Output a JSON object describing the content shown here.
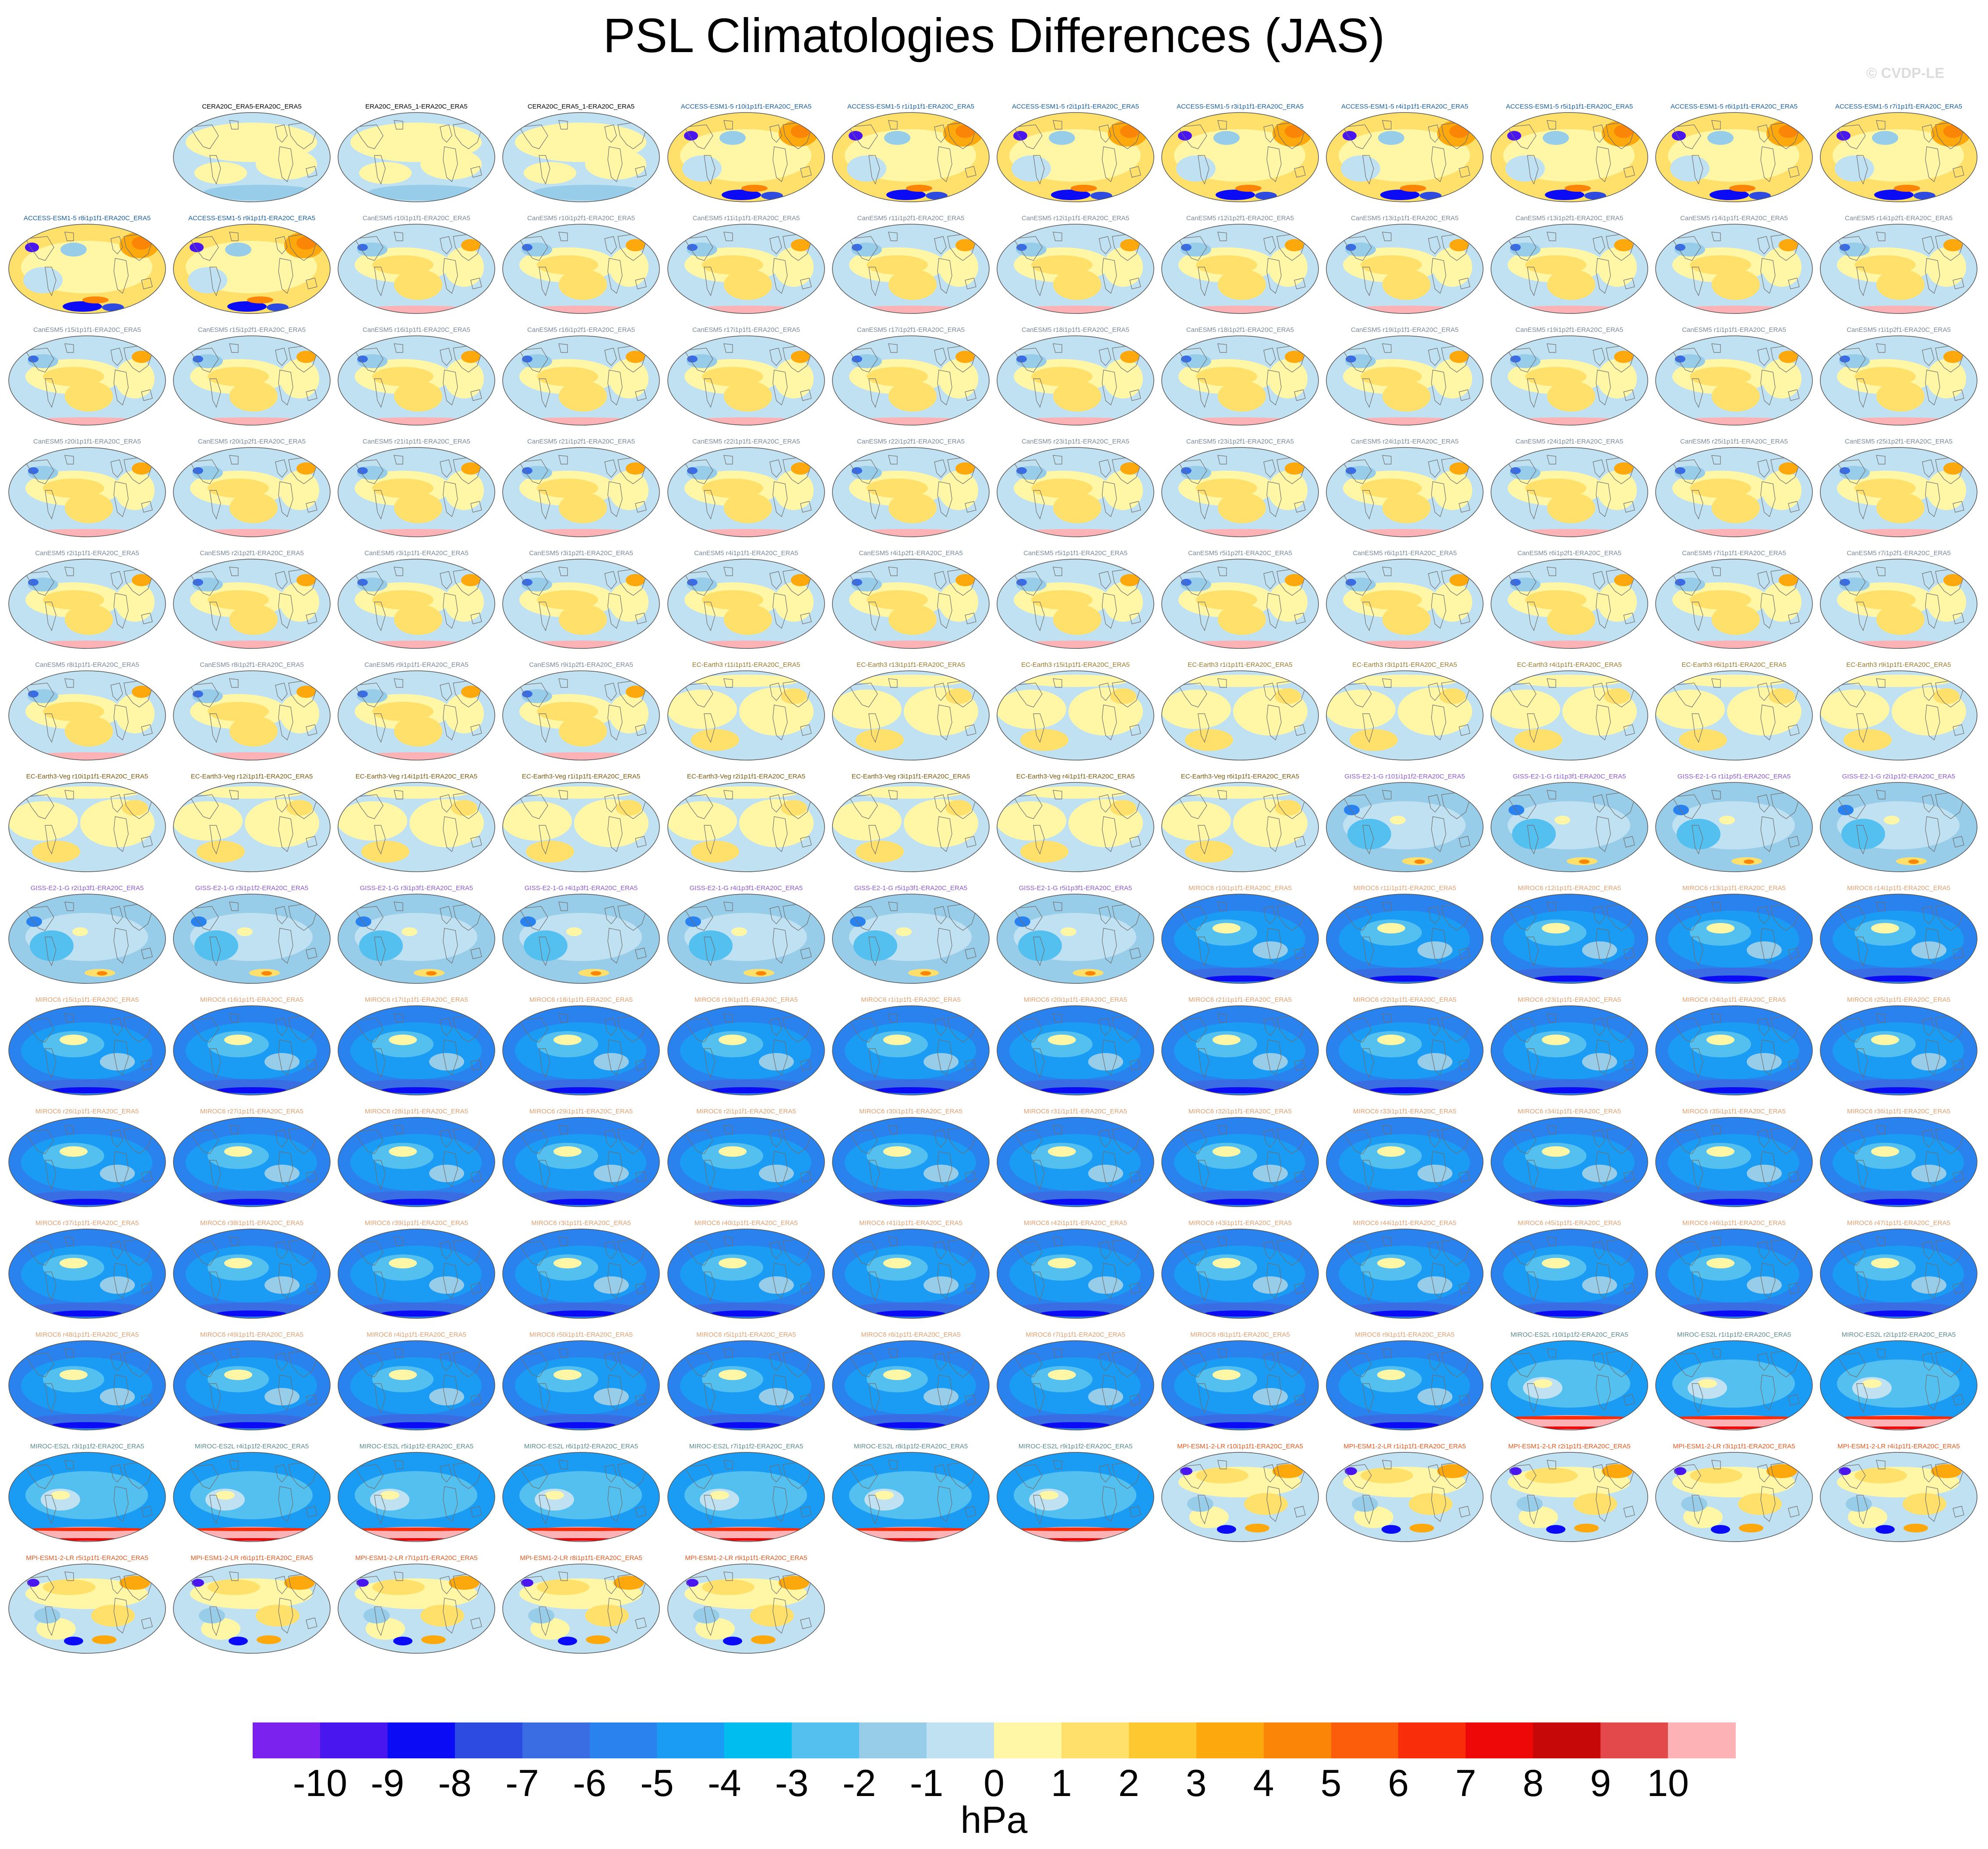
{
  "title": "PSL Climatologies Differences (JAS)",
  "watermark": "© CVDP-LE",
  "colorbar": {
    "units": "hPa",
    "tick_labels": [
      "-10",
      "-9",
      "-8",
      "-7",
      "-6",
      "-5",
      "-4",
      "-3",
      "-2",
      "-1",
      "0",
      "1",
      "2",
      "3",
      "4",
      "5",
      "6",
      "7",
      "8",
      "9",
      "10"
    ],
    "colors": [
      "#7b22ef",
      "#4a16ef",
      "#0b0cf5",
      "#2d4be0",
      "#3a6de3",
      "#2a82ee",
      "#1a9cf5",
      "#00bdf0",
      "#54c0ef",
      "#98cdea",
      "#bfe1f2",
      "#fff7a6",
      "#fee06a",
      "#fec830",
      "#fda80c",
      "#fb8507",
      "#fb5d0b",
      "#f92d0a",
      "#ee0808",
      "#c60808",
      "#e3484a",
      "#fdb3b6"
    ]
  },
  "panels": [
    {
      "title": "CERA20C_ERA5-ERA20C_ERA5",
      "scheme": "ref",
      "title_color": "#000000"
    },
    {
      "title": "ERA20C_ERA5_1-ERA20C_ERA5",
      "scheme": "ref",
      "title_color": "#000000"
    },
    {
      "title": "CERA20C_ERA5_1-ERA20C_ERA5",
      "scheme": "ref",
      "title_color": "#000000"
    },
    {
      "title": "ACCESS-ESM1-5 r10i1p1f1-ERA20C_ERA5",
      "scheme": "access",
      "title_color": "#1a5fa0"
    },
    {
      "title": "ACCESS-ESM1-5 r1i1p1f1-ERA20C_ERA5",
      "scheme": "access",
      "title_color": "#1a5fa0"
    },
    {
      "title": "ACCESS-ESM1-5 r2i1p1f1-ERA20C_ERA5",
      "scheme": "access",
      "title_color": "#1a5fa0"
    },
    {
      "title": "ACCESS-ESM1-5 r3i1p1f1-ERA20C_ERA5",
      "scheme": "access",
      "title_color": "#1a5fa0"
    },
    {
      "title": "ACCESS-ESM1-5 r4i1p1f1-ERA20C_ERA5",
      "scheme": "access",
      "title_color": "#1a5fa0"
    },
    {
      "title": "ACCESS-ESM1-5 r5i1p1f1-ERA20C_ERA5",
      "scheme": "access",
      "title_color": "#1a5fa0"
    },
    {
      "title": "ACCESS-ESM1-5 r6i1p1f1-ERA20C_ERA5",
      "scheme": "access",
      "title_color": "#1a5fa0"
    },
    {
      "title": "ACCESS-ESM1-5 r7i1p1f1-ERA20C_ERA5",
      "scheme": "access",
      "title_color": "#1a5fa0"
    },
    {
      "title": "ACCESS-ESM1-5 r8i1p1f1-ERA20C_ERA5",
      "scheme": "access",
      "title_color": "#1a5fa0"
    },
    {
      "title": "ACCESS-ESM1-5 r9i1p1f1-ERA20C_ERA5",
      "scheme": "access",
      "title_color": "#1a5fa0"
    },
    {
      "title": "CanESM5 r10i1p1f1-ERA20C_ERA5",
      "scheme": "canesm",
      "title_color": "#7a8a9a"
    },
    {
      "title": "CanESM5 r10i1p2f1-ERA20C_ERA5",
      "scheme": "canesm",
      "title_color": "#7a8a9a"
    },
    {
      "title": "CanESM5 r11i1p1f1-ERA20C_ERA5",
      "scheme": "canesm",
      "title_color": "#7a8a9a"
    },
    {
      "title": "CanESM5 r11i1p2f1-ERA20C_ERA5",
      "scheme": "canesm",
      "title_color": "#7a8a9a"
    },
    {
      "title": "CanESM5 r12i1p1f1-ERA20C_ERA5",
      "scheme": "canesm",
      "title_color": "#7a8a9a"
    },
    {
      "title": "CanESM5 r12i1p2f1-ERA20C_ERA5",
      "scheme": "canesm",
      "title_color": "#7a8a9a"
    },
    {
      "title": "CanESM5 r13i1p1f1-ERA20C_ERA5",
      "scheme": "canesm",
      "title_color": "#7a8a9a"
    },
    {
      "title": "CanESM5 r13i1p2f1-ERA20C_ERA5",
      "scheme": "canesm",
      "title_color": "#7a8a9a"
    },
    {
      "title": "CanESM5 r14i1p1f1-ERA20C_ERA5",
      "scheme": "canesm",
      "title_color": "#7a8a9a"
    },
    {
      "title": "CanESM5 r14i1p2f1-ERA20C_ERA5",
      "scheme": "canesm",
      "title_color": "#7a8a9a"
    },
    {
      "title": "CanESM5 r15i1p1f1-ERA20C_ERA5",
      "scheme": "canesm",
      "title_color": "#7a8a9a"
    },
    {
      "title": "CanESM5 r15i1p2f1-ERA20C_ERA5",
      "scheme": "canesm",
      "title_color": "#7a8a9a"
    },
    {
      "title": "CanESM5 r16i1p1f1-ERA20C_ERA5",
      "scheme": "canesm",
      "title_color": "#7a8a9a"
    },
    {
      "title": "CanESM5 r16i1p2f1-ERA20C_ERA5",
      "scheme": "canesm",
      "title_color": "#7a8a9a"
    },
    {
      "title": "CanESM5 r17i1p1f1-ERA20C_ERA5",
      "scheme": "canesm",
      "title_color": "#7a8a9a"
    },
    {
      "title": "CanESM5 r17i1p2f1-ERA20C_ERA5",
      "scheme": "canesm",
      "title_color": "#7a8a9a"
    },
    {
      "title": "CanESM5 r18i1p1f1-ERA20C_ERA5",
      "scheme": "canesm",
      "title_color": "#7a8a9a"
    },
    {
      "title": "CanESM5 r18i1p2f1-ERA20C_ERA5",
      "scheme": "canesm",
      "title_color": "#7a8a9a"
    },
    {
      "title": "CanESM5 r19i1p1f1-ERA20C_ERA5",
      "scheme": "canesm",
      "title_color": "#7a8a9a"
    },
    {
      "title": "CanESM5 r19i1p2f1-ERA20C_ERA5",
      "scheme": "canesm",
      "title_color": "#7a8a9a"
    },
    {
      "title": "CanESM5 r1i1p1f1-ERA20C_ERA5",
      "scheme": "canesm",
      "title_color": "#7a8a9a"
    },
    {
      "title": "CanESM5 r1i1p2f1-ERA20C_ERA5",
      "scheme": "canesm",
      "title_color": "#7a8a9a"
    },
    {
      "title": "CanESM5 r20i1p1f1-ERA20C_ERA5",
      "scheme": "canesm",
      "title_color": "#7a8a9a"
    },
    {
      "title": "CanESM5 r20i1p2f1-ERA20C_ERA5",
      "scheme": "canesm",
      "title_color": "#7a8a9a"
    },
    {
      "title": "CanESM5 r21i1p1f1-ERA20C_ERA5",
      "scheme": "canesm",
      "title_color": "#7a8a9a"
    },
    {
      "title": "CanESM5 r21i1p2f1-ERA20C_ERA5",
      "scheme": "canesm",
      "title_color": "#7a8a9a"
    },
    {
      "title": "CanESM5 r22i1p1f1-ERA20C_ERA5",
      "scheme": "canesm",
      "title_color": "#7a8a9a"
    },
    {
      "title": "CanESM5 r22i1p2f1-ERA20C_ERA5",
      "scheme": "canesm",
      "title_color": "#7a8a9a"
    },
    {
      "title": "CanESM5 r23i1p1f1-ERA20C_ERA5",
      "scheme": "canesm",
      "title_color": "#7a8a9a"
    },
    {
      "title": "CanESM5 r23i1p2f1-ERA20C_ERA5",
      "scheme": "canesm",
      "title_color": "#7a8a9a"
    },
    {
      "title": "CanESM5 r24i1p1f1-ERA20C_ERA5",
      "scheme": "canesm",
      "title_color": "#7a8a9a"
    },
    {
      "title": "CanESM5 r24i1p2f1-ERA20C_ERA5",
      "scheme": "canesm",
      "title_color": "#7a8a9a"
    },
    {
      "title": "CanESM5 r25i1p1f1-ERA20C_ERA5",
      "scheme": "canesm",
      "title_color": "#7a8a9a"
    },
    {
      "title": "CanESM5 r25i1p2f1-ERA20C_ERA5",
      "scheme": "canesm",
      "title_color": "#7a8a9a"
    },
    {
      "title": "CanESM5 r2i1p1f1-ERA20C_ERA5",
      "scheme": "canesm",
      "title_color": "#7a8a9a"
    },
    {
      "title": "CanESM5 r2i1p2f1-ERA20C_ERA5",
      "scheme": "canesm",
      "title_color": "#7a8a9a"
    },
    {
      "title": "CanESM5 r3i1p1f1-ERA20C_ERA5",
      "scheme": "canesm",
      "title_color": "#7a8a9a"
    },
    {
      "title": "CanESM5 r3i1p2f1-ERA20C_ERA5",
      "scheme": "canesm",
      "title_color": "#7a8a9a"
    },
    {
      "title": "CanESM5 r4i1p1f1-ERA20C_ERA5",
      "scheme": "canesm",
      "title_color": "#7a8a9a"
    },
    {
      "title": "CanESM5 r4i1p2f1-ERA20C_ERA5",
      "scheme": "canesm",
      "title_color": "#7a8a9a"
    },
    {
      "title": "CanESM5 r5i1p1f1-ERA20C_ERA5",
      "scheme": "canesm",
      "title_color": "#7a8a9a"
    },
    {
      "title": "CanESM5 r5i1p2f1-ERA20C_ERA5",
      "scheme": "canesm",
      "title_color": "#7a8a9a"
    },
    {
      "title": "CanESM5 r6i1p1f1-ERA20C_ERA5",
      "scheme": "canesm",
      "title_color": "#7a8a9a"
    },
    {
      "title": "CanESM5 r6i1p2f1-ERA20C_ERA5",
      "scheme": "canesm",
      "title_color": "#7a8a9a"
    },
    {
      "title": "CanESM5 r7i1p1f1-ERA20C_ERA5",
      "scheme": "canesm",
      "title_color": "#7a8a9a"
    },
    {
      "title": "CanESM5 r7i1p2f1-ERA20C_ERA5",
      "scheme": "canesm",
      "title_color": "#7a8a9a"
    },
    {
      "title": "CanESM5 r8i1p1f1-ERA20C_ERA5",
      "scheme": "canesm",
      "title_color": "#7a8a9a"
    },
    {
      "title": "CanESM5 r8i1p2f1-ERA20C_ERA5",
      "scheme": "canesm",
      "title_color": "#7a8a9a"
    },
    {
      "title": "CanESM5 r9i1p1f1-ERA20C_ERA5",
      "scheme": "canesm",
      "title_color": "#7a8a9a"
    },
    {
      "title": "CanESM5 r9i1p2f1-ERA20C_ERA5",
      "scheme": "canesm",
      "title_color": "#7a8a9a"
    },
    {
      "title": "EC-Earth3 r11i1p1f1-ERA20C_ERA5",
      "scheme": "ecearth",
      "title_color": "#9a7a2a"
    },
    {
      "title": "EC-Earth3 r13i1p1f1-ERA20C_ERA5",
      "scheme": "ecearth",
      "title_color": "#9a7a2a"
    },
    {
      "title": "EC-Earth3 r15i1p1f1-ERA20C_ERA5",
      "scheme": "ecearth",
      "title_color": "#9a7a2a"
    },
    {
      "title": "EC-Earth3 r1i1p1f1-ERA20C_ERA5",
      "scheme": "ecearth",
      "title_color": "#9a7a2a"
    },
    {
      "title": "EC-Earth3 r3i1p1f1-ERA20C_ERA5",
      "scheme": "ecearth",
      "title_color": "#9a7a2a"
    },
    {
      "title": "EC-Earth3 r4i1p1f1-ERA20C_ERA5",
      "scheme": "ecearth",
      "title_color": "#9a7a2a"
    },
    {
      "title": "EC-Earth3 r6i1p1f1-ERA20C_ERA5",
      "scheme": "ecearth",
      "title_color": "#9a7a2a"
    },
    {
      "title": "EC-Earth3 r9i1p1f1-ERA20C_ERA5",
      "scheme": "ecearth",
      "title_color": "#9a7a2a"
    },
    {
      "title": "EC-Earth3-Veg r10i1p1f1-ERA20C_ERA5",
      "scheme": "ecearth",
      "title_color": "#7a5a10"
    },
    {
      "title": "EC-Earth3-Veg r12i1p1f1-ERA20C_ERA5",
      "scheme": "ecearth",
      "title_color": "#7a5a10"
    },
    {
      "title": "EC-Earth3-Veg r14i1p1f1-ERA20C_ERA5",
      "scheme": "ecearth",
      "title_color": "#7a5a10"
    },
    {
      "title": "EC-Earth3-Veg r1i1p1f1-ERA20C_ERA5",
      "scheme": "ecearth",
      "title_color": "#7a5a10"
    },
    {
      "title": "EC-Earth3-Veg r2i1p1f1-ERA20C_ERA5",
      "scheme": "ecearth",
      "title_color": "#7a5a10"
    },
    {
      "title": "EC-Earth3-Veg r3i1p1f1-ERA20C_ERA5",
      "scheme": "ecearth",
      "title_color": "#7a5a10"
    },
    {
      "title": "EC-Earth3-Veg r4i1p1f1-ERA20C_ERA5",
      "scheme": "ecearth",
      "title_color": "#7a5a10"
    },
    {
      "title": "EC-Earth3-Veg r6i1p1f1-ERA20C_ERA5",
      "scheme": "ecearth",
      "title_color": "#7a5a10"
    },
    {
      "title": "GISS-E2-1-G r101i1p1f2-ERA20C_ERA5",
      "scheme": "giss",
      "title_color": "#8a5ad0"
    },
    {
      "title": "GISS-E2-1-G r1i1p3f1-ERA20C_ERA5",
      "scheme": "giss",
      "title_color": "#8a5ad0"
    },
    {
      "title": "GISS-E2-1-G r1i1p5f1-ERA20C_ERA5",
      "scheme": "giss",
      "title_color": "#8a5ad0"
    },
    {
      "title": "GISS-E2-1-G r2i1p1f2-ERA20C_ERA5",
      "scheme": "giss",
      "title_color": "#8a5ad0"
    },
    {
      "title": "GISS-E2-1-G r2i1p3f1-ERA20C_ERA5",
      "scheme": "giss",
      "title_color": "#8a5ad0"
    },
    {
      "title": "GISS-E2-1-G r3i1p1f2-ERA20C_ERA5",
      "scheme": "giss",
      "title_color": "#8a5ad0"
    },
    {
      "title": "GISS-E2-1-G r3i1p3f1-ERA20C_ERA5",
      "scheme": "giss",
      "title_color": "#8a5ad0"
    },
    {
      "title": "GISS-E2-1-G r4i1p3f1-ERA20C_ERA5",
      "scheme": "giss",
      "title_color": "#8a5ad0"
    },
    {
      "title": "GISS-E2-1-G r4i1p3f1-ERA20C_ERA5",
      "scheme": "giss",
      "title_color": "#8a5ad0"
    },
    {
      "title": "GISS-E2-1-G r5i1p3f1-ERA20C_ERA5",
      "scheme": "giss",
      "title_color": "#8a5ad0"
    },
    {
      "title": "GISS-E2-1-G r5i1p3f1-ERA20C_ERA5",
      "scheme": "giss",
      "title_color": "#8a5ad0"
    },
    {
      "title": "MIROC6 r10i1p1f1-ERA20C_ERA5",
      "scheme": "miroc",
      "title_color": "#e0a070"
    },
    {
      "title": "MIROC6 r11i1p1f1-ERA20C_ERA5",
      "scheme": "miroc",
      "title_color": "#e0a070"
    },
    {
      "title": "MIROC6 r12i1p1f1-ERA20C_ERA5",
      "scheme": "miroc",
      "title_color": "#e0a070"
    },
    {
      "title": "MIROC6 r13i1p1f1-ERA20C_ERA5",
      "scheme": "miroc",
      "title_color": "#e0a070"
    },
    {
      "title": "MIROC6 r14i1p1f1-ERA20C_ERA5",
      "scheme": "miroc",
      "title_color": "#e0a070"
    },
    {
      "title": "MIROC6 r15i1p1f1-ERA20C_ERA5",
      "scheme": "miroc",
      "title_color": "#e0a070"
    },
    {
      "title": "MIROC6 r16i1p1f1-ERA20C_ERA5",
      "scheme": "miroc",
      "title_color": "#e0a070"
    },
    {
      "title": "MIROC6 r17i1p1f1-ERA20C_ERA5",
      "scheme": "miroc",
      "title_color": "#e0a070"
    },
    {
      "title": "MIROC6 r18i1p1f1-ERA20C_ERA5",
      "scheme": "miroc",
      "title_color": "#e0a070"
    },
    {
      "title": "MIROC6 r19i1p1f1-ERA20C_ERA5",
      "scheme": "miroc",
      "title_color": "#e0a070"
    },
    {
      "title": "MIROC6 r1i1p1f1-ERA20C_ERA5",
      "scheme": "miroc",
      "title_color": "#e0a070"
    },
    {
      "title": "MIROC6 r20i1p1f1-ERA20C_ERA5",
      "scheme": "miroc",
      "title_color": "#e0a070"
    },
    {
      "title": "MIROC6 r21i1p1f1-ERA20C_ERA5",
      "scheme": "miroc",
      "title_color": "#e0a070"
    },
    {
      "title": "MIROC6 r22i1p1f1-ERA20C_ERA5",
      "scheme": "miroc",
      "title_color": "#e0a070"
    },
    {
      "title": "MIROC6 r23i1p1f1-ERA20C_ERA5",
      "scheme": "miroc",
      "title_color": "#e0a070"
    },
    {
      "title": "MIROC6 r24i1p1f1-ERA20C_ERA5",
      "scheme": "miroc",
      "title_color": "#e0a070"
    },
    {
      "title": "MIROC6 r25i1p1f1-ERA20C_ERA5",
      "scheme": "miroc",
      "title_color": "#e0a070"
    },
    {
      "title": "MIROC6 r26i1p1f1-ERA20C_ERA5",
      "scheme": "miroc",
      "title_color": "#e0a070"
    },
    {
      "title": "MIROC6 r27i1p1f1-ERA20C_ERA5",
      "scheme": "miroc",
      "title_color": "#e0a070"
    },
    {
      "title": "MIROC6 r28i1p1f1-ERA20C_ERA5",
      "scheme": "miroc",
      "title_color": "#e0a070"
    },
    {
      "title": "MIROC6 r29i1p1f1-ERA20C_ERA5",
      "scheme": "miroc",
      "title_color": "#e0a070"
    },
    {
      "title": "MIROC6 r2i1p1f1-ERA20C_ERA5",
      "scheme": "miroc",
      "title_color": "#e0a070"
    },
    {
      "title": "MIROC6 r30i1p1f1-ERA20C_ERA5",
      "scheme": "miroc",
      "title_color": "#e0a070"
    },
    {
      "title": "MIROC6 r31i1p1f1-ERA20C_ERA5",
      "scheme": "miroc",
      "title_color": "#e0a070"
    },
    {
      "title": "MIROC6 r32i1p1f1-ERA20C_ERA5",
      "scheme": "miroc",
      "title_color": "#e0a070"
    },
    {
      "title": "MIROC6 r33i1p1f1-ERA20C_ERA5",
      "scheme": "miroc",
      "title_color": "#e0a070"
    },
    {
      "title": "MIROC6 r34i1p1f1-ERA20C_ERA5",
      "scheme": "miroc",
      "title_color": "#e0a070"
    },
    {
      "title": "MIROC6 r35i1p1f1-ERA20C_ERA5",
      "scheme": "miroc",
      "title_color": "#e0a070"
    },
    {
      "title": "MIROC6 r36i1p1f1-ERA20C_ERA5",
      "scheme": "miroc",
      "title_color": "#e0a070"
    },
    {
      "title": "MIROC6 r37i1p1f1-ERA20C_ERA5",
      "scheme": "miroc",
      "title_color": "#e0a070"
    },
    {
      "title": "MIROC6 r38i1p1f1-ERA20C_ERA5",
      "scheme": "miroc",
      "title_color": "#e0a070"
    },
    {
      "title": "MIROC6 r39i1p1f1-ERA20C_ERA5",
      "scheme": "miroc",
      "title_color": "#e0a070"
    },
    {
      "title": "MIROC6 r3i1p1f1-ERA20C_ERA5",
      "scheme": "miroc",
      "title_color": "#e0a070"
    },
    {
      "title": "MIROC6 r40i1p1f1-ERA20C_ERA5",
      "scheme": "miroc",
      "title_color": "#e0a070"
    },
    {
      "title": "MIROC6 r41i1p1f1-ERA20C_ERA5",
      "scheme": "miroc",
      "title_color": "#e0a070"
    },
    {
      "title": "MIROC6 r42i1p1f1-ERA20C_ERA5",
      "scheme": "miroc",
      "title_color": "#e0a070"
    },
    {
      "title": "MIROC6 r43i1p1f1-ERA20C_ERA5",
      "scheme": "miroc",
      "title_color": "#e0a070"
    },
    {
      "title": "MIROC6 r44i1p1f1-ERA20C_ERA5",
      "scheme": "miroc",
      "title_color": "#e0a070"
    },
    {
      "title": "MIROC6 r45i1p1f1-ERA20C_ERA5",
      "scheme": "miroc",
      "title_color": "#e0a070"
    },
    {
      "title": "MIROC6 r46i1p1f1-ERA20C_ERA5",
      "scheme": "miroc",
      "title_color": "#e0a070"
    },
    {
      "title": "MIROC6 r47i1p1f1-ERA20C_ERA5",
      "scheme": "miroc",
      "title_color": "#e0a070"
    },
    {
      "title": "MIROC6 r48i1p1f1-ERA20C_ERA5",
      "scheme": "miroc",
      "title_color": "#e0a070"
    },
    {
      "title": "MIROC6 r49i1p1f1-ERA20C_ERA5",
      "scheme": "miroc",
      "title_color": "#e0a070"
    },
    {
      "title": "MIROC6 r4i1p1f1-ERA20C_ERA5",
      "scheme": "miroc",
      "title_color": "#e0a070"
    },
    {
      "title": "MIROC6 r50i1p1f1-ERA20C_ERA5",
      "scheme": "miroc",
      "title_color": "#e0a070"
    },
    {
      "title": "MIROC6 r5i1p1f1-ERA20C_ERA5",
      "scheme": "miroc",
      "title_color": "#e0a070"
    },
    {
      "title": "MIROC6 r6i1p1f1-ERA20C_ERA5",
      "scheme": "miroc",
      "title_color": "#e0a070"
    },
    {
      "title": "MIROC6 r7i1p1f1-ERA20C_ERA5",
      "scheme": "miroc",
      "title_color": "#e0a070"
    },
    {
      "title": "MIROC6 r8i1p1f1-ERA20C_ERA5",
      "scheme": "miroc",
      "title_color": "#e0a070"
    },
    {
      "title": "MIROC6 r9i1p1f1-ERA20C_ERA5",
      "scheme": "miroc",
      "title_color": "#e0a070"
    },
    {
      "title": "MIROC-ES2L r10i1p1f2-ERA20C_ERA5",
      "scheme": "miroces",
      "title_color": "#5a8a8a"
    },
    {
      "title": "MIROC-ES2L r1i1p1f2-ERA20C_ERA5",
      "scheme": "miroces",
      "title_color": "#5a8a8a"
    },
    {
      "title": "MIROC-ES2L r2i1p1f2-ERA20C_ERA5",
      "scheme": "miroces",
      "title_color": "#5a8a8a"
    },
    {
      "title": "MIROC-ES2L r3i1p1f2-ERA20C_ERA5",
      "scheme": "miroces",
      "title_color": "#5a8a8a"
    },
    {
      "title": "MIROC-ES2L r4i1p1f2-ERA20C_ERA5",
      "scheme": "miroces",
      "title_color": "#5a8a8a"
    },
    {
      "title": "MIROC-ES2L r5i1p1f2-ERA20C_ERA5",
      "scheme": "miroces",
      "title_color": "#5a8a8a"
    },
    {
      "title": "MIROC-ES2L r6i1p1f2-ERA20C_ERA5",
      "scheme": "miroces",
      "title_color": "#5a8a8a"
    },
    {
      "title": "MIROC-ES2L r7i1p1f2-ERA20C_ERA5",
      "scheme": "miroces",
      "title_color": "#5a8a8a"
    },
    {
      "title": "MIROC-ES2L r8i1p1f2-ERA20C_ERA5",
      "scheme": "miroces",
      "title_color": "#5a8a8a"
    },
    {
      "title": "MIROC-ES2L r9i1p1f2-ERA20C_ERA5",
      "scheme": "miroces",
      "title_color": "#5a8a8a"
    },
    {
      "title": "MPI-ESM1-2-LR r10i1p1f1-ERA20C_ERA5",
      "scheme": "mpi",
      "title_color": "#e05a20"
    },
    {
      "title": "MPI-ESM1-2-LR r1i1p1f1-ERA20C_ERA5",
      "scheme": "mpi",
      "title_color": "#e05a20"
    },
    {
      "title": "MPI-ESM1-2-LR r2i1p1f1-ERA20C_ERA5",
      "scheme": "mpi",
      "title_color": "#e05a20"
    },
    {
      "title": "MPI-ESM1-2-LR r3i1p1f1-ERA20C_ERA5",
      "scheme": "mpi",
      "title_color": "#e05a20"
    },
    {
      "title": "MPI-ESM1-2-LR r4i1p1f1-ERA20C_ERA5",
      "scheme": "mpi",
      "title_color": "#e05a20"
    },
    {
      "title": "MPI-ESM1-2-LR r5i1p1f1-ERA20C_ERA5",
      "scheme": "mpi",
      "title_color": "#e05a20"
    },
    {
      "title": "MPI-ESM1-2-LR r6i1p1f1-ERA20C_ERA5",
      "scheme": "mpi",
      "title_color": "#e05a20"
    },
    {
      "title": "MPI-ESM1-2-LR r7i1p1f1-ERA20C_ERA5",
      "scheme": "mpi",
      "title_color": "#e05a20"
    },
    {
      "title": "MPI-ESM1-2-LR r8i1p1f1-ERA20C_ERA5",
      "scheme": "mpi",
      "title_color": "#e05a20"
    },
    {
      "title": "MPI-ESM1-2-LR r9i1p1f1-ERA20C_ERA5",
      "scheme": "mpi",
      "title_color": "#e05a20"
    }
  ]
}
